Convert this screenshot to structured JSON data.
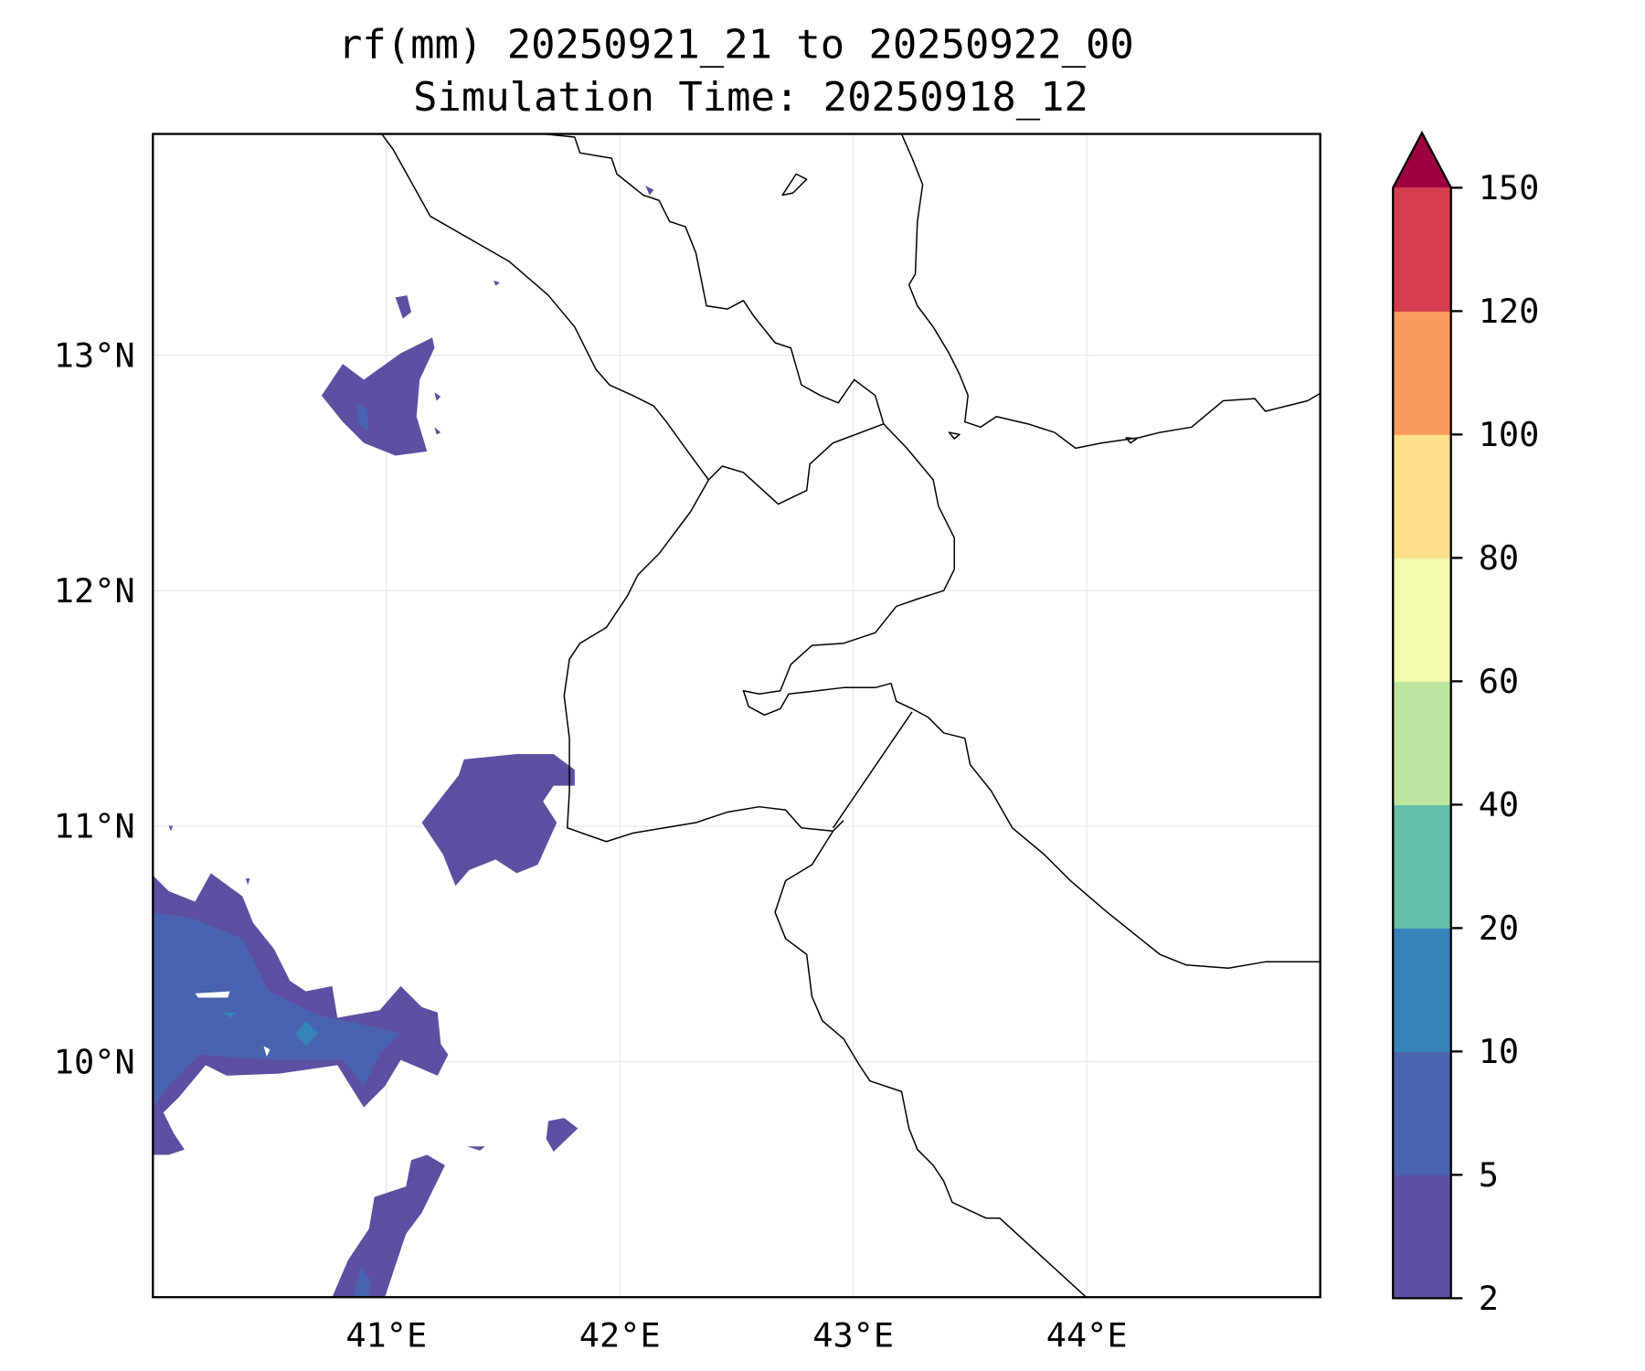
{
  "chart_data": {
    "type": "heatmap",
    "subtype": "filled-contour-map",
    "title": "rf(mm) 20250921_21 to 20250922_00",
    "subtitle": "Simulation Time: 20250918_12",
    "xlabel": "",
    "ylabel": "",
    "xlim": [
      40.0,
      45.0
    ],
    "ylim": [
      9.0,
      13.94
    ],
    "x_ticks": [
      41,
      42,
      43,
      44
    ],
    "x_tick_labels": [
      "41°E",
      "42°E",
      "43°E",
      "44°E"
    ],
    "y_ticks": [
      10,
      11,
      12,
      13
    ],
    "y_tick_labels": [
      "10°N",
      "11°N",
      "12°N",
      "13°N"
    ],
    "grid": true,
    "colorbar": {
      "levels": [
        2,
        5,
        10,
        20,
        40,
        60,
        80,
        100,
        120,
        150
      ],
      "tick_labels": [
        "2",
        "5",
        "10",
        "20",
        "40",
        "60",
        "80",
        "100",
        "120",
        "150"
      ],
      "colors": [
        "#5e4fa2",
        "#4a63ae",
        "#3682ba",
        "#62bea6",
        "#bee5a0",
        "#f3faad",
        "#fee08b",
        "#f99b5a",
        "#d53e4f"
      ],
      "extend_max_color": "#9e0142",
      "placement": "right"
    },
    "observed_ranges_mm": [
      "2-5",
      "5-10",
      "10-20"
    ]
  }
}
